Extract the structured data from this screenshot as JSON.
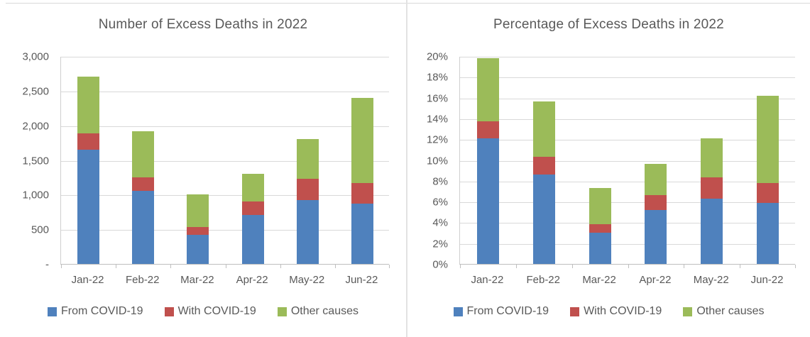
{
  "frame": {
    "top_border_color": "#d9d9d9",
    "divider_color": "#e2e2e2",
    "text_color": "#595959",
    "gridline_color": "#d9d9d9",
    "axis_color": "#bfbfbf"
  },
  "chart_data": [
    {
      "type": "bar",
      "stacked": true,
      "title": "Number of Excess Deaths in 2022",
      "categories": [
        "Jan-22",
        "Feb-22",
        "Mar-22",
        "Apr-22",
        "May-22",
        "Jun-22"
      ],
      "series": [
        {
          "name": "From COVID-19",
          "color": "#4F81BD",
          "values": [
            1650,
            1050,
            420,
            710,
            920,
            870
          ]
        },
        {
          "name": "With COVID-19",
          "color": "#C0504D",
          "values": [
            230,
            200,
            110,
            190,
            310,
            300
          ]
        },
        {
          "name": "Other causes",
          "color": "#9BBB59",
          "values": [
            820,
            660,
            470,
            400,
            570,
            1230
          ]
        }
      ],
      "stack_totals": [
        2700,
        1910,
        1000,
        1300,
        1800,
        2400
      ],
      "y_axis": {
        "min": 0,
        "max": 3000,
        "tick_step": 500,
        "tick_labels": [
          "-",
          "500",
          "1,000",
          "1,500",
          "2,000",
          "2,500",
          "3,000"
        ]
      },
      "xlabel": "",
      "ylabel": "",
      "grid": true,
      "legend_position": "bottom"
    },
    {
      "type": "bar",
      "stacked": true,
      "title": "Percentage of Excess Deaths in 2022",
      "categories": [
        "Jan-22",
        "Feb-22",
        "Mar-22",
        "Apr-22",
        "May-22",
        "Jun-22"
      ],
      "series": [
        {
          "name": "From COVID-19",
          "color": "#4F81BD",
          "values": [
            12.1,
            8.6,
            3.0,
            5.2,
            6.3,
            5.9
          ]
        },
        {
          "name": "With COVID-19",
          "color": "#C0504D",
          "values": [
            1.6,
            1.7,
            0.8,
            1.4,
            2.0,
            1.9
          ]
        },
        {
          "name": "Other causes",
          "color": "#9BBB59",
          "values": [
            6.1,
            5.3,
            3.5,
            3.0,
            3.8,
            8.4
          ]
        }
      ],
      "stack_totals": [
        19.8,
        15.6,
        7.3,
        9.6,
        12.1,
        16.2
      ],
      "y_axis": {
        "min": 0,
        "max": 20,
        "tick_step": 2,
        "tick_labels": [
          "0%",
          "2%",
          "4%",
          "6%",
          "8%",
          "10%",
          "12%",
          "14%",
          "16%",
          "18%",
          "20%"
        ]
      },
      "xlabel": "",
      "ylabel": "",
      "grid": true,
      "legend_position": "bottom"
    }
  ]
}
